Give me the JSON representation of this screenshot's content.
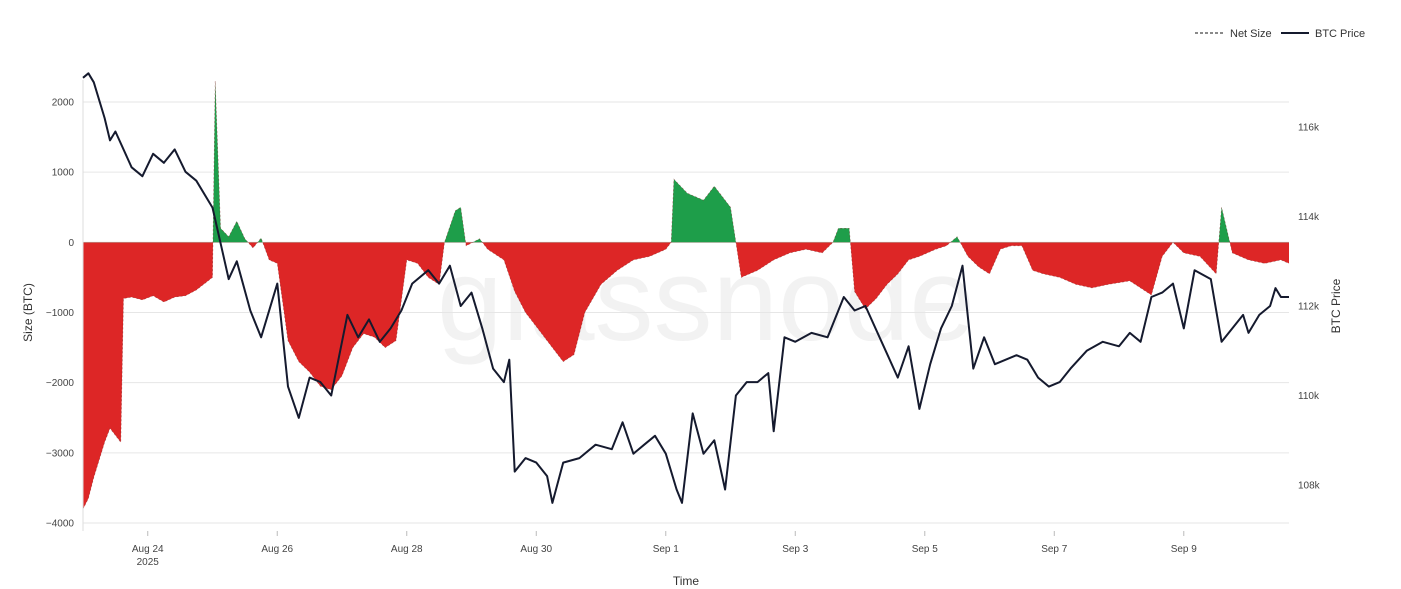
{
  "chart_data": {
    "type": "area",
    "watermark": "glassnode",
    "xlabel": "Time",
    "ylabel_left": "Size (BTC)",
    "ylabel_right": "BTC Price",
    "x_range_days": [
      "2025-08-23",
      "2025-09-10"
    ],
    "x_ticks": [
      {
        "date": "2025-08-24",
        "label": "Aug 24",
        "sublabel": "2025"
      },
      {
        "date": "2025-08-26",
        "label": "Aug 26"
      },
      {
        "date": "2025-08-28",
        "label": "Aug 28"
      },
      {
        "date": "2025-08-30",
        "label": "Aug 30"
      },
      {
        "date": "2025-09-01",
        "label": "Sep 1"
      },
      {
        "date": "2025-09-03",
        "label": "Sep 3"
      },
      {
        "date": "2025-09-05",
        "label": "Sep 5"
      },
      {
        "date": "2025-09-07",
        "label": "Sep 7"
      },
      {
        "date": "2025-09-09",
        "label": "Sep 9"
      }
    ],
    "y_left": {
      "range": [
        -4000,
        2000
      ],
      "ticks": [
        2000,
        1000,
        0,
        -1000,
        -2000,
        -3000,
        -4000
      ],
      "tick_labels": [
        "2000",
        "1000",
        "0",
        "−1000",
        "−2000",
        "−3000",
        "−4000"
      ]
    },
    "y_right": {
      "range": [
        107000,
        117500
      ],
      "ticks": [
        116000,
        114000,
        112000,
        110000,
        108000
      ],
      "tick_labels": [
        "116k",
        "114k",
        "112k",
        "110k",
        "108k"
      ]
    },
    "grid": true,
    "legend": {
      "position": "top-right",
      "items": [
        {
          "name": "Net Size",
          "style": "dashed"
        },
        {
          "name": "BTC Price",
          "style": "solid"
        }
      ]
    },
    "colors": {
      "positive": "#1e9e4a",
      "negative": "#dd2626",
      "price": "#151a2e",
      "grid": "#e6e6e6"
    },
    "series": [
      {
        "name": "Net Size",
        "points": [
          [
            "2025-08-23T00:00",
            -3800
          ],
          [
            "2025-08-23T02:00",
            -3650
          ],
          [
            "2025-08-23T04:00",
            -3350
          ],
          [
            "2025-08-23T06:00",
            -3100
          ],
          [
            "2025-08-23T08:00",
            -2850
          ],
          [
            "2025-08-23T10:00",
            -2650
          ],
          [
            "2025-08-23T12:00",
            -2750
          ],
          [
            "2025-08-23T14:00",
            -2850
          ],
          [
            "2025-08-23T15:00",
            -800
          ],
          [
            "2025-08-23T18:00",
            -780
          ],
          [
            "2025-08-23T22:00",
            -820
          ],
          [
            "2025-08-24T02:00",
            -760
          ],
          [
            "2025-08-24T06:00",
            -850
          ],
          [
            "2025-08-24T10:00",
            -780
          ],
          [
            "2025-08-24T14:00",
            -760
          ],
          [
            "2025-08-24T18:00",
            -680
          ],
          [
            "2025-08-24T22:00",
            -560
          ],
          [
            "2025-08-25T00:00",
            -500
          ],
          [
            "2025-08-25T01:00",
            2300
          ],
          [
            "2025-08-25T03:00",
            200
          ],
          [
            "2025-08-25T06:00",
            80
          ],
          [
            "2025-08-25T09:00",
            300
          ],
          [
            "2025-08-25T12:00",
            50
          ],
          [
            "2025-08-25T15:00",
            -80
          ],
          [
            "2025-08-25T18:00",
            60
          ],
          [
            "2025-08-25T21:00",
            -250
          ],
          [
            "2025-08-26T00:00",
            -300
          ],
          [
            "2025-08-26T04:00",
            -1400
          ],
          [
            "2025-08-26T08:00",
            -1700
          ],
          [
            "2025-08-26T12:00",
            -1850
          ],
          [
            "2025-08-26T16:00",
            -2050
          ],
          [
            "2025-08-26T20:00",
            -2100
          ],
          [
            "2025-08-27T00:00",
            -1900
          ],
          [
            "2025-08-27T04:00",
            -1500
          ],
          [
            "2025-08-27T08:00",
            -1300
          ],
          [
            "2025-08-27T12:00",
            -1350
          ],
          [
            "2025-08-27T16:00",
            -1500
          ],
          [
            "2025-08-27T20:00",
            -1400
          ],
          [
            "2025-08-28T00:00",
            -250
          ],
          [
            "2025-08-28T04:00",
            -300
          ],
          [
            "2025-08-28T08:00",
            -500
          ],
          [
            "2025-08-28T12:00",
            -600
          ],
          [
            "2025-08-28T14:00",
            0
          ],
          [
            "2025-08-28T18:00",
            450
          ],
          [
            "2025-08-28T20:00",
            500
          ],
          [
            "2025-08-28T22:00",
            -50
          ],
          [
            "2025-08-29T03:00",
            50
          ],
          [
            "2025-08-29T06:00",
            -100
          ],
          [
            "2025-08-29T12:00",
            -250
          ],
          [
            "2025-08-29T16:00",
            -700
          ],
          [
            "2025-08-29T20:00",
            -1000
          ],
          [
            "2025-08-30T00:00",
            -1200
          ],
          [
            "2025-08-30T06:00",
            -1500
          ],
          [
            "2025-08-30T10:00",
            -1700
          ],
          [
            "2025-08-30T14:00",
            -1600
          ],
          [
            "2025-08-30T18:00",
            -1000
          ],
          [
            "2025-08-31T00:00",
            -600
          ],
          [
            "2025-08-31T06:00",
            -400
          ],
          [
            "2025-08-31T12:00",
            -250
          ],
          [
            "2025-08-31T18:00",
            -200
          ],
          [
            "2025-09-01T00:00",
            -100
          ],
          [
            "2025-09-01T02:00",
            0
          ],
          [
            "2025-09-01T03:00",
            900
          ],
          [
            "2025-09-01T08:00",
            700
          ],
          [
            "2025-09-01T14:00",
            600
          ],
          [
            "2025-09-01T18:00",
            800
          ],
          [
            "2025-09-02T00:00",
            500
          ],
          [
            "2025-09-02T02:00",
            0
          ],
          [
            "2025-09-02T04:00",
            -500
          ],
          [
            "2025-09-02T10:00",
            -400
          ],
          [
            "2025-09-02T16:00",
            -250
          ],
          [
            "2025-09-02T22:00",
            -150
          ],
          [
            "2025-09-03T04:00",
            -100
          ],
          [
            "2025-09-03T10:00",
            -150
          ],
          [
            "2025-09-03T14:00",
            0
          ],
          [
            "2025-09-03T16:00",
            200
          ],
          [
            "2025-09-03T20:00",
            200
          ],
          [
            "2025-09-03T22:00",
            -700
          ],
          [
            "2025-09-04T02:00",
            -950
          ],
          [
            "2025-09-04T06:00",
            -800
          ],
          [
            "2025-09-04T10:00",
            -600
          ],
          [
            "2025-09-04T14:00",
            -450
          ],
          [
            "2025-09-04T18:00",
            -250
          ],
          [
            "2025-09-04T22:00",
            -200
          ],
          [
            "2025-09-05T04:00",
            -100
          ],
          [
            "2025-09-05T08:00",
            -50
          ],
          [
            "2025-09-05T12:00",
            80
          ],
          [
            "2025-09-05T16:00",
            -200
          ],
          [
            "2025-09-05T20:00",
            -350
          ],
          [
            "2025-09-06T00:00",
            -450
          ],
          [
            "2025-09-06T04:00",
            -100
          ],
          [
            "2025-09-06T08:00",
            -50
          ],
          [
            "2025-09-06T12:00",
            -50
          ],
          [
            "2025-09-06T16:00",
            -400
          ],
          [
            "2025-09-06T20:00",
            -450
          ],
          [
            "2025-09-07T02:00",
            -500
          ],
          [
            "2025-09-07T08:00",
            -600
          ],
          [
            "2025-09-07T14:00",
            -650
          ],
          [
            "2025-09-07T20:00",
            -600
          ],
          [
            "2025-09-08T04:00",
            -550
          ],
          [
            "2025-09-08T12:00",
            -750
          ],
          [
            "2025-09-08T16:00",
            -200
          ],
          [
            "2025-09-08T20:00",
            0
          ],
          [
            "2025-09-09T00:00",
            -150
          ],
          [
            "2025-09-09T06:00",
            -200
          ],
          [
            "2025-09-09T12:00",
            -450
          ],
          [
            "2025-09-09T14:00",
            500
          ],
          [
            "2025-09-09T18:00",
            -150
          ],
          [
            "2025-09-10T00:00",
            -250
          ],
          [
            "2025-09-10T06:00",
            -300
          ],
          [
            "2025-09-10T12:00",
            -250
          ],
          [
            "2025-09-10T15:00",
            -300
          ]
        ]
      },
      {
        "name": "BTC Price",
        "points": [
          [
            "2025-08-23T00:00",
            117100
          ],
          [
            "2025-08-23T02:00",
            117200
          ],
          [
            "2025-08-23T04:00",
            117000
          ],
          [
            "2025-08-23T08:00",
            116200
          ],
          [
            "2025-08-23T10:00",
            115700
          ],
          [
            "2025-08-23T12:00",
            115900
          ],
          [
            "2025-08-23T18:00",
            115100
          ],
          [
            "2025-08-23T22:00",
            114900
          ],
          [
            "2025-08-24T02:00",
            115400
          ],
          [
            "2025-08-24T06:00",
            115200
          ],
          [
            "2025-08-24T10:00",
            115500
          ],
          [
            "2025-08-24T14:00",
            115000
          ],
          [
            "2025-08-24T18:00",
            114800
          ],
          [
            "2025-08-25T00:00",
            114200
          ],
          [
            "2025-08-25T03:00",
            113400
          ],
          [
            "2025-08-25T06:00",
            112600
          ],
          [
            "2025-08-25T09:00",
            113000
          ],
          [
            "2025-08-25T14:00",
            111900
          ],
          [
            "2025-08-25T18:00",
            111300
          ],
          [
            "2025-08-26T00:00",
            112500
          ],
          [
            "2025-08-26T04:00",
            110200
          ],
          [
            "2025-08-26T08:00",
            109500
          ],
          [
            "2025-08-26T12:00",
            110400
          ],
          [
            "2025-08-26T16:00",
            110300
          ],
          [
            "2025-08-26T20:00",
            110000
          ],
          [
            "2025-08-27T02:00",
            111800
          ],
          [
            "2025-08-27T06:00",
            111300
          ],
          [
            "2025-08-27T10:00",
            111700
          ],
          [
            "2025-08-27T14:00",
            111200
          ],
          [
            "2025-08-27T18:00",
            111500
          ],
          [
            "2025-08-27T22:00",
            111900
          ],
          [
            "2025-08-28T02:00",
            112500
          ],
          [
            "2025-08-28T08:00",
            112800
          ],
          [
            "2025-08-28T12:00",
            112500
          ],
          [
            "2025-08-28T16:00",
            112900
          ],
          [
            "2025-08-28T20:00",
            112000
          ],
          [
            "2025-08-29T00:00",
            112300
          ],
          [
            "2025-08-29T04:00",
            111500
          ],
          [
            "2025-08-29T08:00",
            110600
          ],
          [
            "2025-08-29T12:00",
            110300
          ],
          [
            "2025-08-29T14:00",
            110800
          ],
          [
            "2025-08-29T16:00",
            108300
          ],
          [
            "2025-08-29T20:00",
            108600
          ],
          [
            "2025-08-30T00:00",
            108500
          ],
          [
            "2025-08-30T04:00",
            108200
          ],
          [
            "2025-08-30T06:00",
            107600
          ],
          [
            "2025-08-30T10:00",
            108500
          ],
          [
            "2025-08-30T16:00",
            108600
          ],
          [
            "2025-08-30T22:00",
            108900
          ],
          [
            "2025-08-31T04:00",
            108800
          ],
          [
            "2025-08-31T08:00",
            109400
          ],
          [
            "2025-08-31T12:00",
            108700
          ],
          [
            "2025-08-31T16:00",
            108900
          ],
          [
            "2025-08-31T20:00",
            109100
          ],
          [
            "2025-09-01T00:00",
            108700
          ],
          [
            "2025-09-01T04:00",
            107900
          ],
          [
            "2025-09-01T06:00",
            107600
          ],
          [
            "2025-09-01T10:00",
            109600
          ],
          [
            "2025-09-01T14:00",
            108700
          ],
          [
            "2025-09-01T18:00",
            109000
          ],
          [
            "2025-09-01T22:00",
            107900
          ],
          [
            "2025-09-02T02:00",
            110000
          ],
          [
            "2025-09-02T06:00",
            110300
          ],
          [
            "2025-09-02T10:00",
            110300
          ],
          [
            "2025-09-02T14:00",
            110500
          ],
          [
            "2025-09-02T16:00",
            109200
          ],
          [
            "2025-09-02T20:00",
            111300
          ],
          [
            "2025-09-03T00:00",
            111200
          ],
          [
            "2025-09-03T06:00",
            111400
          ],
          [
            "2025-09-03T12:00",
            111300
          ],
          [
            "2025-09-03T18:00",
            112200
          ],
          [
            "2025-09-03T22:00",
            111900
          ],
          [
            "2025-09-04T02:00",
            112000
          ],
          [
            "2025-09-04T08:00",
            111200
          ],
          [
            "2025-09-04T14:00",
            110400
          ],
          [
            "2025-09-04T18:00",
            111100
          ],
          [
            "2025-09-04T22:00",
            109700
          ],
          [
            "2025-09-05T02:00",
            110700
          ],
          [
            "2025-09-05T06:00",
            111500
          ],
          [
            "2025-09-05T10:00",
            112000
          ],
          [
            "2025-09-05T14:00",
            112900
          ],
          [
            "2025-09-05T18:00",
            110600
          ],
          [
            "2025-09-05T22:00",
            111300
          ],
          [
            "2025-09-06T02:00",
            110700
          ],
          [
            "2025-09-06T06:00",
            110800
          ],
          [
            "2025-09-06T10:00",
            110900
          ],
          [
            "2025-09-06T14:00",
            110800
          ],
          [
            "2025-09-06T18:00",
            110400
          ],
          [
            "2025-09-06T22:00",
            110200
          ],
          [
            "2025-09-07T02:00",
            110300
          ],
          [
            "2025-09-07T06:00",
            110600
          ],
          [
            "2025-09-07T12:00",
            111000
          ],
          [
            "2025-09-07T18:00",
            111200
          ],
          [
            "2025-09-08T00:00",
            111100
          ],
          [
            "2025-09-08T04:00",
            111400
          ],
          [
            "2025-09-08T08:00",
            111200
          ],
          [
            "2025-09-08T12:00",
            112200
          ],
          [
            "2025-09-08T16:00",
            112300
          ],
          [
            "2025-09-08T20:00",
            112500
          ],
          [
            "2025-09-09T00:00",
            111500
          ],
          [
            "2025-09-09T04:00",
            112800
          ],
          [
            "2025-09-09T10:00",
            112600
          ],
          [
            "2025-09-09T14:00",
            111200
          ],
          [
            "2025-09-09T18:00",
            111500
          ],
          [
            "2025-09-09T22:00",
            111800
          ],
          [
            "2025-09-10T00:00",
            111400
          ],
          [
            "2025-09-10T04:00",
            111800
          ],
          [
            "2025-09-10T08:00",
            112000
          ],
          [
            "2025-09-10T10:00",
            112400
          ],
          [
            "2025-09-10T12:00",
            112200
          ],
          [
            "2025-09-10T15:00",
            112200
          ]
        ]
      }
    ]
  }
}
